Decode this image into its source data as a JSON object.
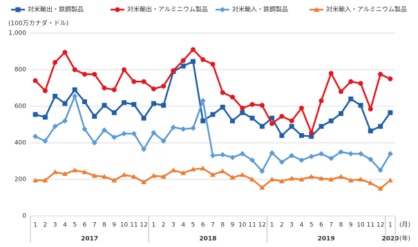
{
  "chart_data": {
    "type": "line",
    "y_label": "(100万カナダ・ドル)",
    "x_unit_month": "(月)",
    "x_unit_year": "(年)",
    "categories": [
      "1",
      "2",
      "3",
      "4",
      "5",
      "6",
      "7",
      "8",
      "9",
      "10",
      "11",
      "12",
      "1",
      "2",
      "3",
      "4",
      "5",
      "6",
      "7",
      "8",
      "9",
      "10",
      "11",
      "12",
      "1",
      "2",
      "3",
      "4",
      "5",
      "6",
      "7",
      "8",
      "9",
      "10",
      "11",
      "12",
      "1"
    ],
    "groups": [
      {
        "name": "2017",
        "size": 12
      },
      {
        "name": "2018",
        "size": 12
      },
      {
        "name": "2019",
        "size": 12
      },
      {
        "name": "2020",
        "size": 1
      }
    ],
    "ylim": [
      0,
      1000
    ],
    "yticks": [
      0,
      200,
      400,
      600,
      800,
      {
        "value": 1000,
        "label": "1,000"
      }
    ],
    "grid": true,
    "series": [
      {
        "name": "対米輸出・鉄鋼製品",
        "color": "#1f5fa8",
        "marker": "square",
        "values": [
          555,
          540,
          655,
          615,
          690,
          625,
          545,
          605,
          565,
          620,
          610,
          535,
          615,
          605,
          790,
          820,
          845,
          520,
          555,
          595,
          520,
          565,
          535,
          490,
          535,
          440,
          490,
          440,
          435,
          490,
          520,
          560,
          640,
          605,
          465,
          490,
          565
        ]
      },
      {
        "name": "対米輸出・アルミニウム製品",
        "color": "#e8141b",
        "marker": "circle",
        "values": [
          740,
          685,
          840,
          895,
          800,
          775,
          775,
          700,
          690,
          800,
          735,
          735,
          695,
          710,
          795,
          850,
          910,
          855,
          830,
          675,
          650,
          590,
          610,
          605,
          505,
          545,
          520,
          590,
          455,
          630,
          780,
          680,
          735,
          725,
          585,
          775,
          750
        ]
      },
      {
        "name": "対米輸入・鉄鋼製品",
        "color": "#5b9bd5",
        "marker": "diamond",
        "values": [
          435,
          410,
          490,
          520,
          655,
          475,
          400,
          470,
          430,
          450,
          450,
          365,
          455,
          410,
          485,
          475,
          480,
          630,
          330,
          335,
          320,
          340,
          305,
          245,
          345,
          295,
          330,
          305,
          325,
          340,
          315,
          350,
          340,
          340,
          310,
          250,
          340
        ]
      },
      {
        "name": "対米輸入・アルミニウム製品",
        "color": "#ed7d31",
        "marker": "triangle",
        "values": [
          195,
          195,
          240,
          230,
          250,
          240,
          220,
          215,
          195,
          225,
          215,
          185,
          220,
          215,
          250,
          235,
          255,
          260,
          225,
          245,
          210,
          225,
          200,
          155,
          200,
          190,
          205,
          200,
          215,
          205,
          200,
          215,
          195,
          200,
          180,
          150,
          195
        ]
      }
    ]
  }
}
